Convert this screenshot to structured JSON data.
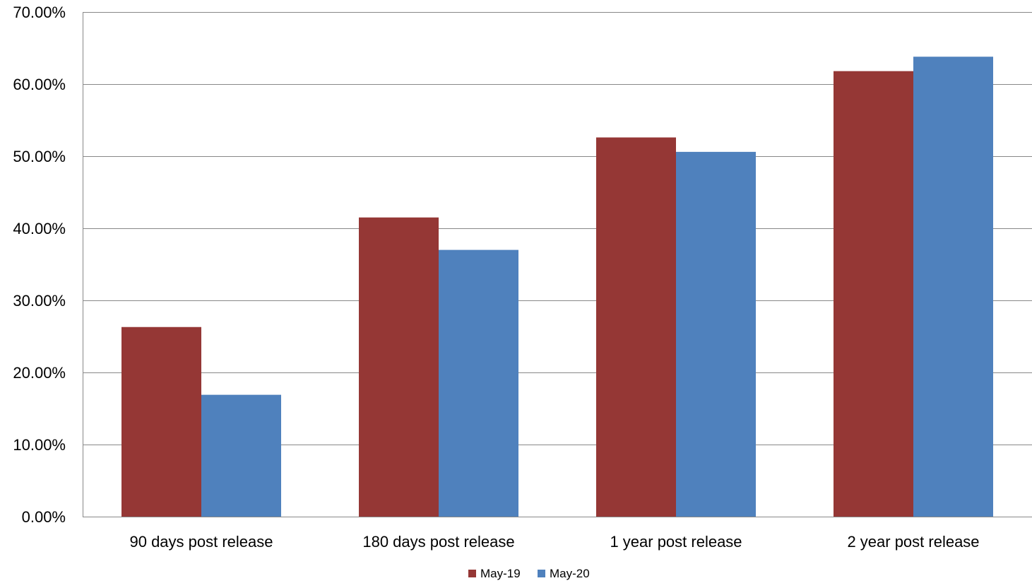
{
  "chart_data": {
    "type": "bar",
    "title": "",
    "xlabel": "",
    "ylabel": "",
    "categories": [
      "90 days post release",
      "180 days post release",
      "1 year post release",
      "2 year post release"
    ],
    "series": [
      {
        "name": "May-19",
        "color": "#953735",
        "values": [
          26.3,
          41.5,
          52.6,
          61.8
        ]
      },
      {
        "name": "May-20",
        "color": "#4F81BD",
        "values": [
          16.9,
          37.0,
          50.6,
          63.8
        ]
      }
    ],
    "ylim": [
      0,
      70
    ],
    "yticks": [
      0,
      10,
      20,
      30,
      40,
      50,
      60,
      70
    ],
    "ytick_labels": [
      "0.00%",
      "10.00%",
      "20.00%",
      "30.00%",
      "40.00%",
      "50.00%",
      "60.00%",
      "70.00%"
    ],
    "grid": true,
    "grid_color": "#888888",
    "legend_position": "bottom"
  }
}
